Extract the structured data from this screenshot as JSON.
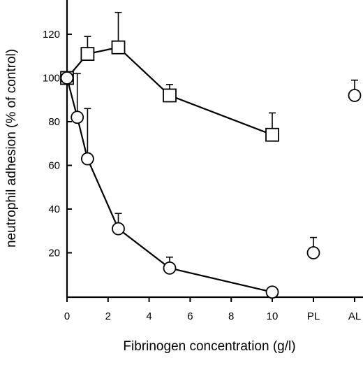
{
  "chart_data": {
    "type": "scatter",
    "xlabel": "Fibrinogen concentration (g/l)",
    "ylabel": "neutrophil adhesion (% of control)",
    "ylim": [
      0,
      135
    ],
    "x_ticks": [
      "0",
      "2",
      "4",
      "6",
      "8",
      "10"
    ],
    "x_extra_categories": [
      "PL",
      "AL"
    ],
    "y_ticks": [
      "20",
      "40",
      "60",
      "80",
      "100",
      "120"
    ],
    "grid": false,
    "legend": "none",
    "series": [
      {
        "marker": "square",
        "connected": true,
        "points": [
          {
            "x": 0,
            "y": 100,
            "err": 2
          },
          {
            "x": 1,
            "y": 111,
            "err": 8
          },
          {
            "x": 2.5,
            "y": 114,
            "err": 16
          },
          {
            "x": 5,
            "y": 92,
            "err": 5
          },
          {
            "x": 10,
            "y": 74,
            "err": 10
          }
        ]
      },
      {
        "marker": "circle",
        "connected": true,
        "points": [
          {
            "x": 0,
            "y": 100,
            "err": 2
          },
          {
            "x": 0.5,
            "y": 82,
            "err": 20
          },
          {
            "x": 1,
            "y": 63,
            "err": 23
          },
          {
            "x": 2.5,
            "y": 31,
            "err": 7
          },
          {
            "x": 5,
            "y": 13,
            "err": 5
          },
          {
            "x": 10,
            "y": 2,
            "err": 0
          }
        ]
      },
      {
        "marker": "circle",
        "connected": false,
        "points": [
          {
            "x": "PL",
            "y": 20,
            "err": 7
          },
          {
            "x": "AL",
            "y": 92,
            "err": 7
          }
        ]
      }
    ]
  }
}
